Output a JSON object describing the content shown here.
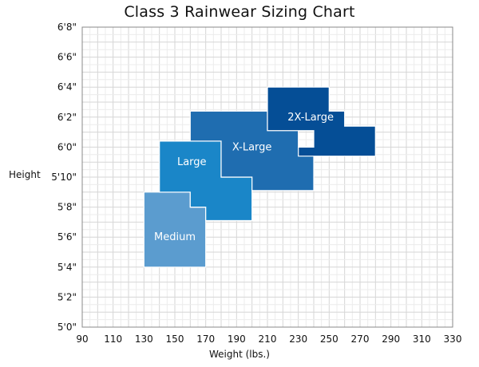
{
  "chart_data": {
    "type": "area",
    "title": "Class 3 Rainwear Sizing Chart",
    "xlabel": "Weight (lbs.)",
    "ylabel": "Height",
    "xlim": [
      90,
      330
    ],
    "ylim": [
      60,
      80
    ],
    "x_ticks": [
      90,
      110,
      130,
      150,
      170,
      190,
      210,
      230,
      250,
      270,
      290,
      310,
      330
    ],
    "y_ticks": [
      {
        "value": 60,
        "label": "5'0\""
      },
      {
        "value": 62,
        "label": "5'2\""
      },
      {
        "value": 64,
        "label": "5'4\""
      },
      {
        "value": 66,
        "label": "5'6\""
      },
      {
        "value": 68,
        "label": "5'8\""
      },
      {
        "value": 70,
        "label": "5'10\""
      },
      {
        "value": 72,
        "label": "6'0\""
      },
      {
        "value": 74,
        "label": "6'2\""
      },
      {
        "value": 76,
        "label": "6'4\""
      },
      {
        "value": 78,
        "label": "6'6\""
      },
      {
        "value": 80,
        "label": "6'8\""
      }
    ],
    "grid": true,
    "series": [
      {
        "name": "Medium",
        "color": "#5b9ccf",
        "polygon": [
          [
            130,
            64
          ],
          [
            130,
            69
          ],
          [
            160,
            69
          ],
          [
            160,
            68
          ],
          [
            170,
            68
          ],
          [
            170,
            64
          ]
        ],
        "label_pos": [
          150,
          66
        ]
      },
      {
        "name": "Large",
        "color": "#1a86c8",
        "polygon": [
          [
            140,
            69
          ],
          [
            140,
            72.4
          ],
          [
            180,
            72.4
          ],
          [
            180,
            70
          ],
          [
            200,
            70
          ],
          [
            200,
            67.1
          ],
          [
            170,
            67.1
          ],
          [
            170,
            68
          ],
          [
            160,
            68
          ],
          [
            160,
            69
          ]
        ],
        "label_pos": [
          161,
          71
        ]
      },
      {
        "name": "X-Large",
        "color": "#1f6db0",
        "polygon": [
          [
            160,
            72.4
          ],
          [
            160,
            74.4
          ],
          [
            210,
            74.4
          ],
          [
            210,
            73.1
          ],
          [
            230,
            73.1
          ],
          [
            230,
            72
          ],
          [
            240,
            72
          ],
          [
            240,
            69.1
          ],
          [
            200,
            69.1
          ],
          [
            200,
            70
          ],
          [
            180,
            70
          ],
          [
            180,
            72.4
          ]
        ],
        "label_pos": [
          200,
          72
        ]
      },
      {
        "name": "2X-Large",
        "color": "#054e96",
        "polygon": [
          [
            210,
            73.1
          ],
          [
            210,
            76
          ],
          [
            250,
            76
          ],
          [
            250,
            74.4
          ],
          [
            260,
            74.4
          ],
          [
            260,
            73.4
          ],
          [
            280,
            73.4
          ],
          [
            280,
            71.4
          ],
          [
            230,
            71.4
          ],
          [
            230,
            72
          ],
          [
            240,
            72
          ],
          [
            240,
            73.1
          ]
        ],
        "label_pos": [
          238,
          74
        ]
      }
    ]
  }
}
